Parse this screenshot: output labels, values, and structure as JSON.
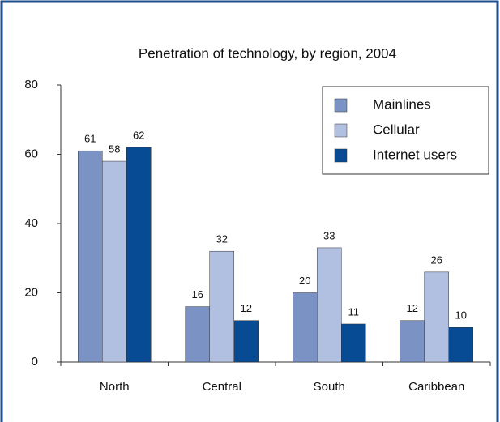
{
  "chart_data": {
    "type": "bar",
    "title": "Penetration of technology, by region, 2004",
    "categories": [
      "North",
      "Central",
      "South",
      "Caribbean"
    ],
    "series": [
      {
        "name": "Mainlines",
        "color": "#7b93c4",
        "values": [
          61,
          16,
          20,
          12
        ]
      },
      {
        "name": "Cellular",
        "color": "#b1bfe0",
        "values": [
          58,
          32,
          33,
          26
        ]
      },
      {
        "name": "Internet users",
        "color": "#064b93",
        "values": [
          62,
          12,
          11,
          10
        ]
      }
    ],
    "ylim": [
      0,
      80
    ],
    "yticks": [
      0,
      20,
      40,
      60,
      80
    ],
    "legend": "upper right"
  }
}
